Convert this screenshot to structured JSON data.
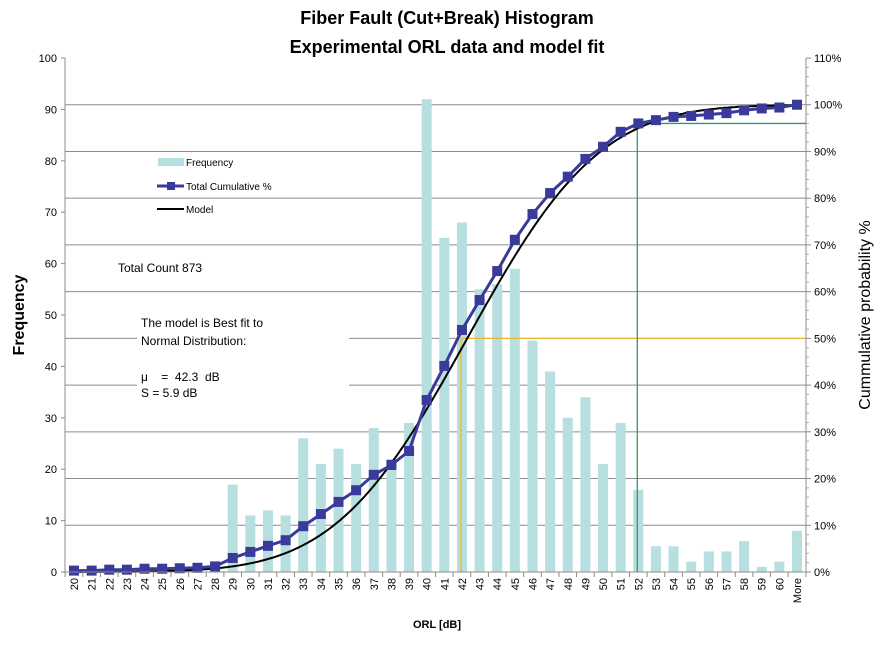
{
  "chart_data": {
    "type": "bar+line",
    "title": [
      "Fiber Fault (Cut+Break) Histogram",
      "Experimental ORL data and model fit"
    ],
    "xlabel": "ORL [dB]",
    "ylabel": "Frequency",
    "y2label": "Cummulative probability %",
    "ylim": [
      0,
      100
    ],
    "yticks": [
      "0",
      "10",
      "20",
      "30",
      "40",
      "50",
      "60",
      "70",
      "80",
      "90",
      "100"
    ],
    "y2lim": [
      0,
      110
    ],
    "y2ticks": [
      "0%",
      "10%",
      "20%",
      "30%",
      "40%",
      "50%",
      "60%",
      "70%",
      "80%",
      "90%",
      "100%",
      "110%"
    ],
    "grid": true,
    "legend_position": "upper-left inside",
    "categories": [
      "20",
      "21",
      "22",
      "23",
      "24",
      "25",
      "26",
      "27",
      "28",
      "29",
      "30",
      "31",
      "32",
      "33",
      "34",
      "35",
      "36",
      "37",
      "38",
      "39",
      "40",
      "41",
      "42",
      "43",
      "44",
      "45",
      "46",
      "47",
      "48",
      "49",
      "50",
      "51",
      "52",
      "53",
      "54",
      "55",
      "56",
      "57",
      "58",
      "59",
      "60",
      "More"
    ],
    "series": [
      {
        "name": "Frequency",
        "type": "bar",
        "axis": "left",
        "color": "#b7dfe0",
        "values": [
          1,
          0,
          1,
          0,
          1,
          0,
          1,
          0,
          1,
          17,
          11,
          12,
          11,
          26,
          21,
          24,
          21,
          28,
          22,
          29,
          92,
          65,
          68,
          55,
          56,
          59,
          45,
          39,
          30,
          34,
          21,
          29,
          16,
          5,
          5,
          2,
          4,
          4,
          6,
          1,
          2,
          8
        ]
      },
      {
        "name": "Total Cumulative %",
        "type": "line-marker",
        "axis": "right",
        "color": "#3a3a9a",
        "values": [
          0.3,
          0.3,
          0.5,
          0.5,
          0.7,
          0.7,
          0.8,
          0.9,
          1.2,
          3.0,
          4.3,
          5.6,
          6.8,
          9.8,
          12.4,
          15.0,
          17.5,
          20.8,
          22.9,
          25.9,
          36.8,
          44.1,
          51.8,
          58.2,
          64.4,
          71.1,
          76.6,
          81.1,
          84.6,
          88.4,
          91.0,
          94.2,
          96.0,
          96.7,
          97.4,
          97.6,
          97.9,
          98.2,
          98.8,
          99.2,
          99.4,
          100.0
        ]
      },
      {
        "name": "Model",
        "type": "line",
        "axis": "right",
        "color": "#000000",
        "distribution": "normal",
        "mean": 42.3,
        "sd": 5.9
      }
    ],
    "reference_lines": [
      {
        "color": "#e8b830",
        "x": "42",
        "y_percent": 50
      },
      {
        "color": "#2e9a6a",
        "x": "52",
        "y_percent": 96
      }
    ],
    "annotations": {
      "total_count": "Total Count 873",
      "model_line1": "The model is  Best fit to",
      "model_line2": "Normal Distribution:",
      "mu": "μ    =  42.3  dB",
      "s": "S = 5.9 dB"
    }
  }
}
